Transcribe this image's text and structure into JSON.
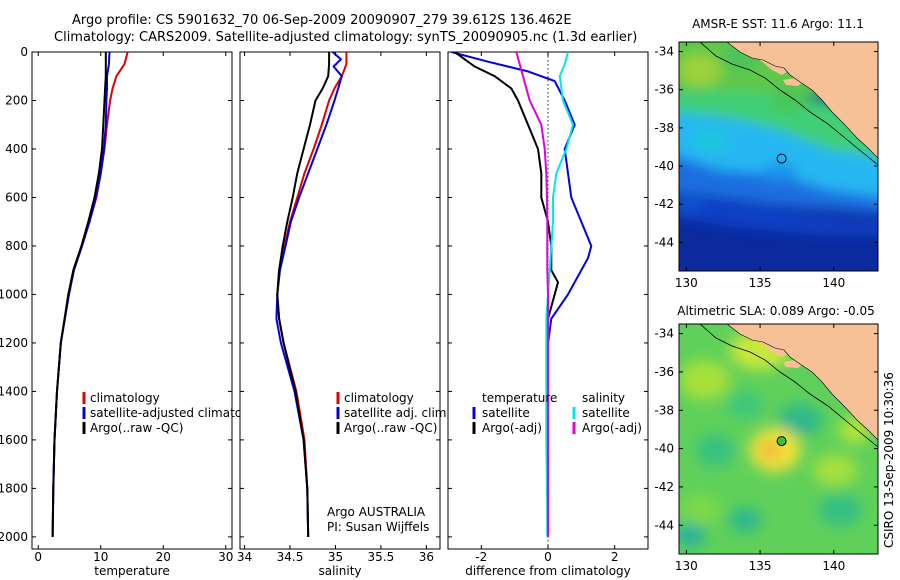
{
  "header": {
    "line1": "Argo profile: CS 5901632_70 06-Sep-2009 20090907_279 39.612S 136.462E",
    "line2": "Climatology: CARS2009. Satellite-adjusted climatology: synTS_20090905.nc (1.3d earlier)"
  },
  "colors": {
    "climatology": "#e00000",
    "satellite": "#0000e0",
    "argo": "#000000",
    "salinity_satellite": "#00e8e8",
    "salinity_argo": "#e000e0",
    "land": "#f7c198"
  },
  "chart_data": [
    {
      "type": "line",
      "panel": "temperature",
      "xlabel": "temperature",
      "xlim": [
        -1,
        31
      ],
      "ylim": [
        2050,
        0
      ],
      "xticks": [
        "0",
        "10",
        "20",
        "30"
      ],
      "yticks": [
        "0",
        "200",
        "400",
        "600",
        "800",
        "1000",
        "1200",
        "1400",
        "1600",
        "1800",
        "2000"
      ],
      "legend": [
        {
          "label": "climatology"
        },
        {
          "label": "satellite-adjusted climatology"
        },
        {
          "label": "Argo(..raw -QC)"
        }
      ],
      "series": [
        {
          "name": "climatology",
          "depth": [
            0,
            50,
            100,
            150,
            200,
            300,
            400,
            500,
            600,
            700,
            800,
            900,
            1000,
            1200,
            1400,
            1600,
            1800,
            2000
          ],
          "values": [
            14.3,
            13.8,
            12.5,
            11.9,
            11.5,
            11.0,
            10.6,
            10.0,
            9.3,
            8.2,
            7.0,
            5.7,
            4.9,
            3.6,
            3.0,
            2.6,
            2.4,
            2.3
          ]
        },
        {
          "name": "satellite-adjusted climatology",
          "depth": [
            0,
            50,
            100,
            150,
            200,
            300,
            400,
            500,
            600,
            700,
            800,
            900,
            1000,
            1200,
            1400,
            1600,
            1800,
            2000
          ],
          "values": [
            11.4,
            11.3,
            11.0,
            11.0,
            10.9,
            10.8,
            10.5,
            10.0,
            9.2,
            8.2,
            7.0,
            5.7,
            4.9,
            3.6,
            3.0,
            2.6,
            2.4,
            2.3
          ]
        },
        {
          "name": "Argo(..raw -QC)",
          "depth": [
            0,
            50,
            100,
            150,
            200,
            300,
            400,
            500,
            600,
            700,
            800,
            900,
            1000,
            1200,
            1400,
            1600,
            1800,
            2000
          ],
          "values": [
            10.8,
            10.8,
            10.8,
            10.7,
            10.6,
            10.4,
            10.2,
            9.7,
            9.0,
            8.0,
            6.9,
            5.6,
            4.8,
            3.6,
            3.0,
            2.6,
            2.4,
            2.3
          ]
        }
      ]
    },
    {
      "type": "line",
      "panel": "salinity",
      "xlabel": "salinity",
      "xlim": [
        33.95,
        36.15
      ],
      "ylim": [
        2050,
        0
      ],
      "xticks": [
        "34",
        "34.5",
        "35",
        "35.5",
        "36"
      ],
      "legend": [
        {
          "label": "climatology"
        },
        {
          "label": "satellite adj. clim."
        },
        {
          "label": "Argo(..raw -QC)"
        }
      ],
      "annotation": [
        "Argo AUSTRALIA",
        "PI: Susan Wijffels"
      ],
      "series": [
        {
          "name": "climatology",
          "depth": [
            0,
            50,
            100,
            150,
            200,
            300,
            400,
            500,
            600,
            700,
            800,
            900,
            1000,
            1100,
            1200,
            1400,
            1600,
            1800,
            2000
          ],
          "values": [
            35.12,
            35.12,
            35.07,
            34.99,
            34.93,
            34.85,
            34.76,
            34.66,
            34.58,
            34.5,
            34.44,
            34.38,
            34.36,
            34.38,
            34.43,
            34.57,
            34.66,
            34.69,
            34.7
          ]
        },
        {
          "name": "satellite adj. clim.",
          "depth": [
            0,
            30,
            60,
            100,
            150,
            200,
            300,
            400,
            500,
            600,
            700,
            800,
            900,
            1000,
            1100,
            1200,
            1400,
            1600,
            1800,
            2000
          ],
          "values": [
            34.97,
            35.06,
            34.98,
            35.07,
            35.03,
            34.99,
            34.9,
            34.8,
            34.7,
            34.6,
            34.51,
            34.45,
            34.39,
            34.36,
            34.35,
            34.4,
            34.55,
            34.65,
            34.69,
            34.7
          ]
        },
        {
          "name": "Argo(..raw -QC)",
          "depth": [
            0,
            50,
            100,
            150,
            200,
            300,
            400,
            500,
            600,
            700,
            800,
            900,
            1000,
            1100,
            1200,
            1400,
            1600,
            1800,
            2000
          ],
          "values": [
            34.93,
            34.93,
            34.92,
            34.86,
            34.78,
            34.72,
            34.65,
            34.58,
            34.53,
            34.47,
            34.42,
            34.38,
            34.36,
            34.38,
            34.43,
            34.56,
            34.65,
            34.69,
            34.7
          ]
        }
      ]
    },
    {
      "type": "line",
      "panel": "difference",
      "xlabel": "difference from climatology",
      "xlim": [
        -3,
        3
      ],
      "ylim": [
        2050,
        0
      ],
      "xticks": [
        "-2",
        "0",
        "2"
      ],
      "legend": [
        {
          "label": "temperature"
        },
        {
          "label": "satellite"
        },
        {
          "label": "Argo(-adj)"
        },
        {
          "label": "salinity"
        },
        {
          "label": "satellite"
        },
        {
          "label": "Argo(-adj)"
        }
      ],
      "series": [
        {
          "name": "temperature satellite",
          "depth": [
            0,
            40,
            80,
            120,
            200,
            300,
            400,
            500,
            600,
            700,
            800,
            850,
            900,
            1000,
            1100,
            1200,
            1400,
            1600,
            1800,
            2000
          ],
          "values": [
            -2.9,
            -1.8,
            -0.6,
            0.2,
            0.5,
            0.8,
            0.5,
            0.6,
            0.7,
            1.0,
            1.3,
            1.2,
            1.0,
            0.6,
            0.1,
            0.0,
            0.0,
            0.0,
            0.0,
            0.0
          ]
        },
        {
          "name": "temperature Argo(-adj)",
          "depth": [
            0,
            30,
            60,
            100,
            150,
            200,
            300,
            400,
            500,
            600,
            700,
            800,
            900,
            950,
            1000,
            1100,
            1200,
            1400,
            1600,
            1800,
            2000
          ],
          "values": [
            -2.8,
            -2.5,
            -2.2,
            -1.6,
            -1.1,
            -0.9,
            -0.6,
            -0.3,
            -0.2,
            -0.2,
            0.0,
            0.1,
            0.1,
            0.3,
            0.2,
            0.0,
            0.0,
            0.0,
            0.0,
            0.0,
            0.0
          ]
        },
        {
          "name": "salinity satellite",
          "depth": [
            0,
            50,
            100,
            200,
            300,
            400,
            500,
            600,
            700,
            800,
            900,
            1000,
            1100,
            1200,
            1400,
            1600,
            1800,
            2000
          ],
          "values": [
            0.6,
            0.5,
            0.35,
            0.45,
            0.75,
            0.55,
            0.25,
            0.15,
            0.15,
            0.1,
            0.05,
            0.0,
            -0.05,
            -0.05,
            -0.05,
            -0.05,
            -0.03,
            -0.02
          ]
        },
        {
          "name": "salinity Argo(-adj)",
          "depth": [
            0,
            50,
            100,
            200,
            300,
            400,
            500,
            600,
            700,
            800,
            900,
            1000,
            1200,
            1400,
            1600,
            1800,
            2000
          ],
          "values": [
            -0.95,
            -0.85,
            -0.75,
            -0.55,
            -0.2,
            -0.1,
            -0.05,
            -0.03,
            -0.02,
            -0.02,
            -0.02,
            0.0,
            0.0,
            0.0,
            0.0,
            0.0,
            0.0
          ]
        }
      ]
    }
  ],
  "maps": [
    {
      "title": "AMSR-E SST: 11.6 Argo: 11.1",
      "xticks": [
        "130",
        "135",
        "140"
      ],
      "yticks": [
        "-34",
        "-36",
        "-38",
        "-40",
        "-42",
        "-44"
      ],
      "lon_range": [
        129.5,
        143.0
      ],
      "lat_range": [
        -45.5,
        -33.5
      ],
      "argo_position": {
        "lon": 136.462,
        "lat": -39.612
      }
    },
    {
      "title": "Altimetric SLA: 0.089 Argo: -0.05",
      "xticks": [
        "130",
        "135",
        "140"
      ],
      "yticks": [
        "-34",
        "-36",
        "-38",
        "-40",
        "-42",
        "-44"
      ],
      "lon_range": [
        129.5,
        143.0
      ],
      "lat_range": [
        -45.5,
        -33.5
      ],
      "argo_position": {
        "lon": 136.462,
        "lat": -39.612
      }
    }
  ],
  "footer": {
    "stamp": "CSIRO 13-Sep-2009 10:30:36"
  }
}
